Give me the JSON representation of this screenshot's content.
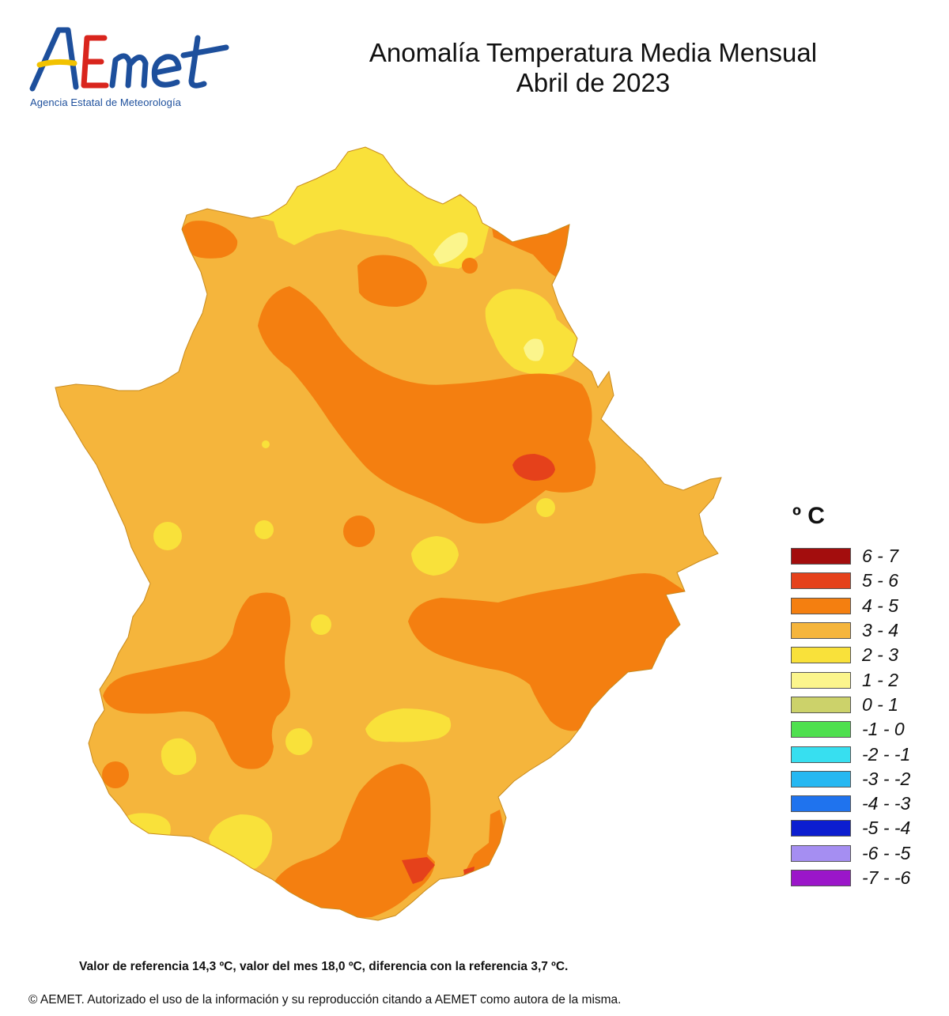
{
  "logo": {
    "wordmark": "AEMet",
    "subtitle": "Agencia Estatal de Meteorología"
  },
  "header": {
    "title_line1": "Anomalía Temperatura Media Mensual",
    "title_line2": "Abril de 2023"
  },
  "legend": {
    "unit": "º C",
    "items": [
      {
        "label": "6 - 7",
        "color": "#a30d0d"
      },
      {
        "label": "5 - 6",
        "color": "#e5411b"
      },
      {
        "label": "4 - 5",
        "color": "#f47f10"
      },
      {
        "label": "3 - 4",
        "color": "#f5b53c"
      },
      {
        "label": "2 - 3",
        "color": "#f9e13a"
      },
      {
        "label": "1 - 2",
        "color": "#fbf58c"
      },
      {
        "label": "0 - 1",
        "color": "#ccd26a"
      },
      {
        "label": "-1 - 0",
        "color": "#4fe04f"
      },
      {
        "label": "-2 - -1",
        "color": "#37dff0"
      },
      {
        "label": "-3 - -2",
        "color": "#26b8f2"
      },
      {
        "label": "-4 - -3",
        "color": "#1f73ee"
      },
      {
        "label": "-5 - -4",
        "color": "#0c1ed0"
      },
      {
        "label": "-6 - -5",
        "color": "#a58ef2"
      },
      {
        "label": "-7 - -6",
        "color": "#9b16c9"
      }
    ]
  },
  "footer": {
    "reference": "Valor de referencia 14,3 ºC, valor del mes 18,0 ºC, diferencia con la referencia 3,7 ºC.",
    "copyright": "© AEMET. Autorizado el uso de la información y su reproducción citando a AEMET como autora de la misma."
  }
}
